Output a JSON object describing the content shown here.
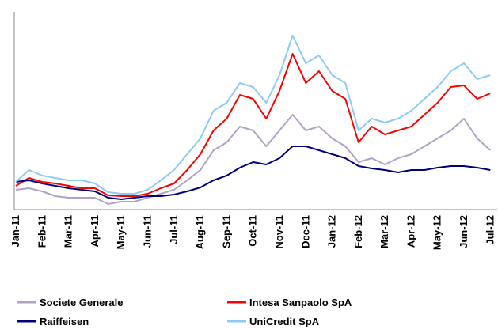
{
  "chart_data": {
    "type": "line",
    "x": [
      0,
      0.5,
      1,
      1.5,
      2,
      2.5,
      3,
      3.5,
      4,
      4.5,
      5,
      5.5,
      6,
      6.5,
      7,
      7.5,
      8,
      8.5,
      9,
      9.5,
      10,
      10.5,
      11,
      11.5,
      12,
      12.5,
      13,
      13.5,
      14,
      14.5,
      15,
      15.5,
      16,
      16.5,
      17,
      17.5,
      18
    ],
    "xlim": [
      0,
      18.2
    ],
    "xticks": [
      {
        "value": 0,
        "label": "Jan-11"
      },
      {
        "value": 1,
        "label": "Feb-11"
      },
      {
        "value": 2,
        "label": "Mar-11"
      },
      {
        "value": 3,
        "label": "Apr-11"
      },
      {
        "value": 4,
        "label": "May-11"
      },
      {
        "value": 5,
        "label": "Jun-11"
      },
      {
        "value": 6,
        "label": "Jul-11"
      },
      {
        "value": 7,
        "label": "Aug-11"
      },
      {
        "value": 8,
        "label": "Sep-11"
      },
      {
        "value": 9,
        "label": "Oct-11"
      },
      {
        "value": 10,
        "label": "Nov-11"
      },
      {
        "value": 11,
        "label": "Dec-11"
      },
      {
        "value": 12,
        "label": "Jan-12"
      },
      {
        "value": 13,
        "label": "Feb-12"
      },
      {
        "value": 14,
        "label": "Mar-12"
      },
      {
        "value": 15,
        "label": "Apr-12"
      },
      {
        "value": 16,
        "label": "May-12"
      },
      {
        "value": 17,
        "label": "Jun-12"
      },
      {
        "value": 18,
        "label": "Jul-12"
      }
    ],
    "ylim": [
      0,
      100
    ],
    "series": [
      {
        "name": "Societe Generale",
        "color": "#b3a2c7",
        "values": [
          10,
          10.8,
          9.2,
          6.8,
          6,
          6,
          6,
          2.8,
          4,
          4,
          6,
          8,
          10,
          14.8,
          20,
          30,
          34,
          42,
          40,
          32,
          40,
          48,
          40,
          42,
          36,
          32,
          24,
          26,
          22.8,
          26,
          28,
          32,
          36,
          40,
          46,
          36,
          30
        ]
      },
      {
        "name": "Intesa Sanpaolo SpA",
        "color": "#ff0000",
        "values": [
          12,
          16,
          14,
          13.2,
          12,
          10.8,
          10.8,
          7.2,
          6.8,
          6.8,
          8,
          10.8,
          13.2,
          20,
          28,
          40,
          46,
          58,
          56,
          46,
          60,
          78.8,
          64,
          70,
          60,
          56,
          34,
          42,
          38,
          40,
          42,
          48,
          54,
          62,
          62.8,
          56,
          58.8
        ]
      },
      {
        "name": "Raiffeisen",
        "color": "#000080",
        "values": [
          14,
          14.8,
          13.2,
          12,
          10.8,
          10,
          9.2,
          6,
          5.2,
          6,
          6.8,
          6.8,
          7.6,
          9.2,
          11.2,
          14.8,
          17.2,
          21.2,
          24,
          22.8,
          26,
          32,
          32,
          30,
          28,
          26,
          22,
          20.8,
          20,
          18.8,
          20,
          20,
          21.2,
          22,
          22,
          21.2,
          20
        ]
      },
      {
        "name": "UniCredit SpA",
        "color": "#8ecbf5",
        "values": [
          14,
          20,
          17.2,
          16,
          14.8,
          14.8,
          13.2,
          8.8,
          8,
          8,
          10,
          14.8,
          20,
          28,
          36,
          50,
          54,
          64,
          62,
          54,
          68,
          88,
          74,
          78,
          68,
          64,
          40,
          46,
          44,
          46,
          50,
          56,
          62,
          70,
          74,
          66,
          68
        ]
      }
    ]
  }
}
